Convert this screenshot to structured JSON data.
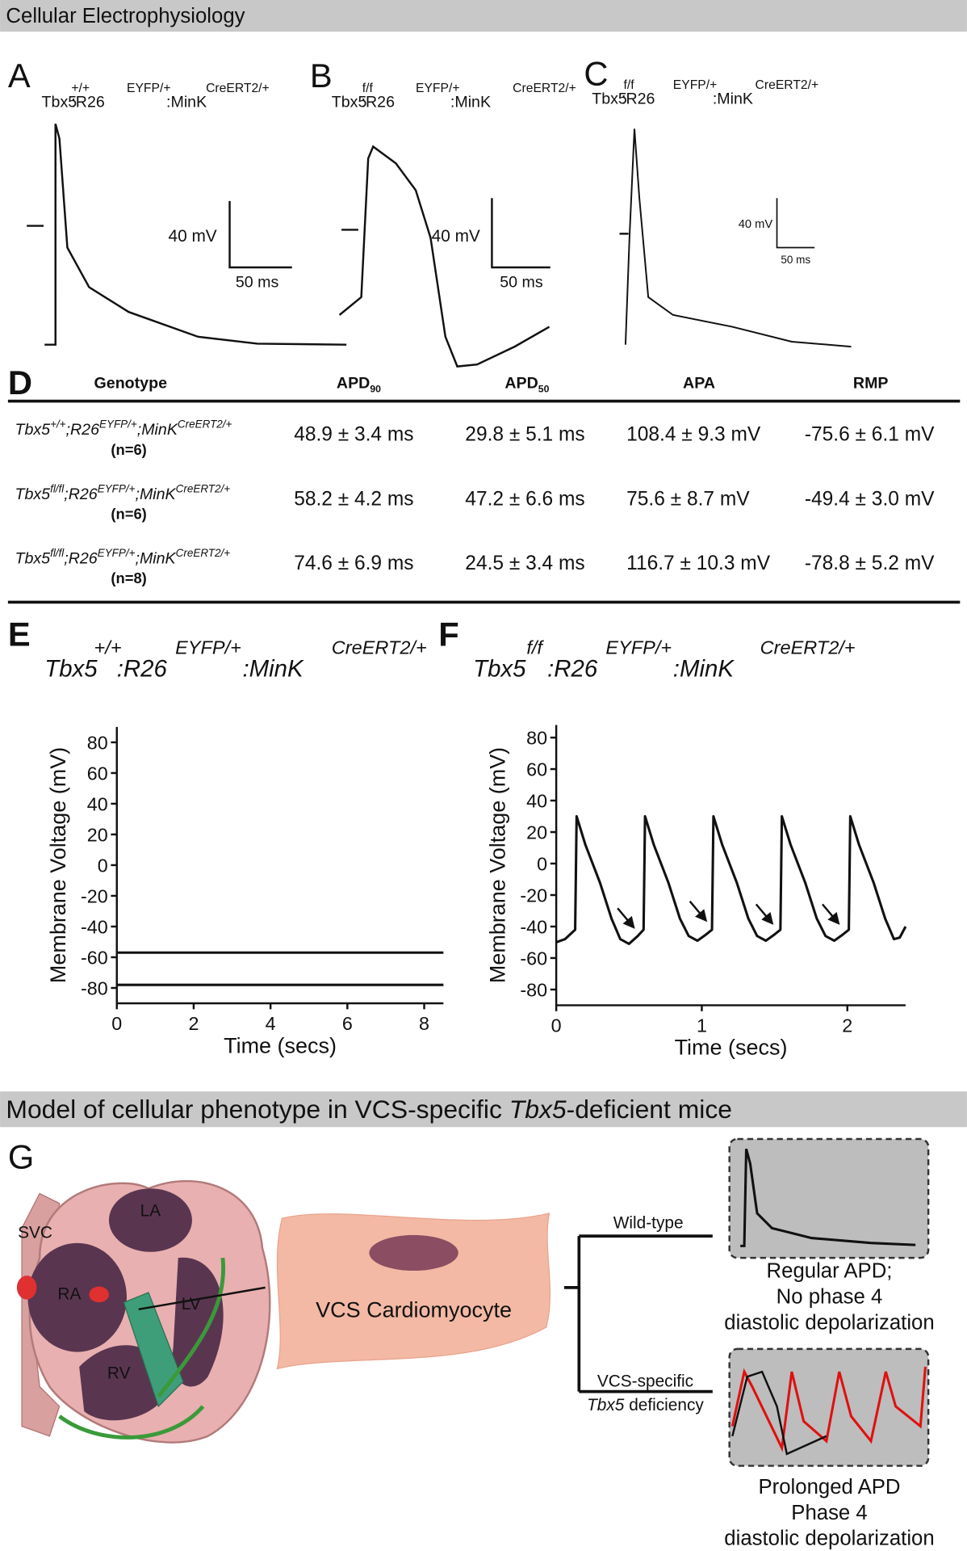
{
  "header": {
    "title": "Cellular Electrophysiology"
  },
  "panels": [
    {
      "label": "A",
      "genotype": [
        {
          "text": "Tbx5",
          "sup": "+/+"
        },
        {
          "text": ":R26",
          "sup": "EYFP/+"
        },
        {
          "text": ":MinK",
          "sup": "CreERT2/+"
        }
      ],
      "scale_v": "40 mV",
      "scale_t": "50 ms"
    },
    {
      "label": "B",
      "genotype": [
        {
          "text": "Tbx5",
          "sup": "f/f"
        },
        {
          "text": ":R26",
          "sup": "EYFP/+"
        },
        {
          "text": ":MinK",
          "sup": "CreERT2/+"
        }
      ],
      "scale_v": "40 mV",
      "scale_t": "50 ms"
    },
    {
      "label": "C",
      "genotype": [
        {
          "text": "Tbx5",
          "sup": "f/f"
        },
        {
          "text": ":R26",
          "sup": "EYFP/+"
        },
        {
          "text": ":MinK",
          "sup": "CreERT2/+"
        }
      ],
      "scale_v": "40 mV",
      "scale_t": "50 ms"
    }
  ],
  "table": {
    "label": "D",
    "headers": [
      {
        "text": "Genotype"
      },
      {
        "text": "APD",
        "sub": "90"
      },
      {
        "text": "APD",
        "sub": "50"
      },
      {
        "text": "APA"
      },
      {
        "text": "RMP"
      }
    ],
    "rows": [
      {
        "genotype": [
          {
            "text": "Tbx5",
            "sup": "+/+"
          },
          {
            "text": ";R26",
            "sup": "EYFP/+"
          },
          {
            "text": ";MinK",
            "sup": "CreERT2/+"
          }
        ],
        "n": "(n=6)",
        "values": [
          "48.9 ± 3.4 ms",
          "29.8 ± 5.1 ms",
          "108.4 ± 9.3 mV",
          "-75.6 ± 6.1 mV"
        ]
      },
      {
        "genotype": [
          {
            "text": "Tbx5",
            "sup": "fl/fl"
          },
          {
            "text": ";R26",
            "sup": "EYFP/+"
          },
          {
            "text": ";MinK",
            "sup": "CreERT2/+"
          }
        ],
        "n": "(n=6)",
        "values": [
          "58.2 ± 4.2 ms",
          "47.2 ± 6.6 ms",
          "75.6 ± 8.7 mV",
          "-49.4 ± 3.0 mV"
        ]
      },
      {
        "genotype": [
          {
            "text": "Tbx5",
            "sup": "fl/fl"
          },
          {
            "text": ";R26",
            "sup": "EYFP/+"
          },
          {
            "text": ";MinK",
            "sup": "CreERT2/+"
          }
        ],
        "n": "(n=8)",
        "values": [
          "74.6 ± 6.9 ms",
          "24.5 ± 3.4 ms",
          "116.7 ± 10.3 mV",
          "-78.8 ± 5.2 mV"
        ]
      }
    ]
  },
  "chart_data": [
    {
      "type": "line",
      "label": "E",
      "genotype": [
        {
          "text": "Tbx5",
          "sup": "+/+"
        },
        {
          "text": ":R26",
          "sup": "EYFP/+"
        },
        {
          "text": ":MinK",
          "sup": "CreERT2/+"
        }
      ],
      "xlabel": "Time (secs)",
      "ylabel": "Membrane Voltage (mV)",
      "xlim": [
        0,
        8.5
      ],
      "ylim": [
        -90,
        90
      ],
      "xticks": [
        0,
        2,
        4,
        6,
        8
      ],
      "yticks": [
        -80,
        -60,
        -40,
        -20,
        0,
        20,
        40,
        60,
        80
      ],
      "x": [
        0,
        8.5
      ],
      "series": [
        {
          "color": "#111111",
          "values": [
            -57,
            -57
          ]
        },
        {
          "color": "#111111",
          "values": [
            -78,
            -78
          ]
        }
      ]
    },
    {
      "type": "line",
      "label": "F",
      "genotype": [
        {
          "text": "Tbx5",
          "sup": "f/f"
        },
        {
          "text": ":R26",
          "sup": "EYFP/+"
        },
        {
          "text": ":MinK",
          "sup": "CreERT2/+"
        }
      ],
      "xlabel": "Time (secs)",
      "ylabel": "Membrane Voltage (mV)",
      "xlim": [
        0,
        2.4
      ],
      "ylim": [
        -90,
        88
      ],
      "xticks": [
        0,
        1,
        2
      ],
      "yticks": [
        -80,
        -60,
        -40,
        -20,
        0,
        20,
        40,
        60,
        80
      ],
      "x": [
        0,
        0.06,
        0.13,
        0.14,
        0.2,
        0.3,
        0.38,
        0.44,
        0.5,
        0.56,
        0.6,
        0.61,
        0.67,
        0.77,
        0.85,
        0.91,
        0.97,
        1.03,
        1.07,
        1.08,
        1.14,
        1.24,
        1.32,
        1.38,
        1.44,
        1.5,
        1.54,
        1.55,
        1.61,
        1.71,
        1.79,
        1.85,
        1.91,
        1.97,
        2.01,
        2.02,
        2.08,
        2.18,
        2.26,
        2.32,
        2.36,
        2.4
      ],
      "series": [
        {
          "color": "#111111",
          "values": [
            -50,
            -48,
            -42,
            30,
            12,
            -12,
            -35,
            -48,
            -51,
            -46,
            -42,
            30,
            12,
            -12,
            -35,
            -46,
            -49,
            -45,
            -42,
            30,
            12,
            -12,
            -35,
            -46,
            -49,
            -45,
            -42,
            30,
            12,
            -12,
            -35,
            -46,
            -49,
            -45,
            -42,
            30,
            12,
            -12,
            -35,
            -48,
            -47,
            -40
          ]
        }
      ]
    }
  ],
  "model": {
    "title": [
      {
        "text": "Model of cellular phenotype in VCS-specific "
      },
      {
        "text": "Tbx5",
        "italic": true
      },
      {
        "text": "-deficient mice"
      }
    ],
    "label": "G",
    "heart_labels": [
      "SVC",
      "LA",
      "RA",
      "LV",
      "RV"
    ],
    "cell": "VCS Cardiomyocyte",
    "wild_type": "Wild-type",
    "mutant": [
      "VCS-specific",
      [
        {
          "text": "Tbx5",
          "italic": true
        },
        {
          "text": " deficiency"
        }
      ]
    ],
    "wt_caption": [
      "Regular APD;",
      "No phase 4",
      "diastolic depolarization"
    ],
    "mut_caption": [
      "Prolonged APD",
      "Phase 4",
      "diastolic depolarization"
    ]
  }
}
